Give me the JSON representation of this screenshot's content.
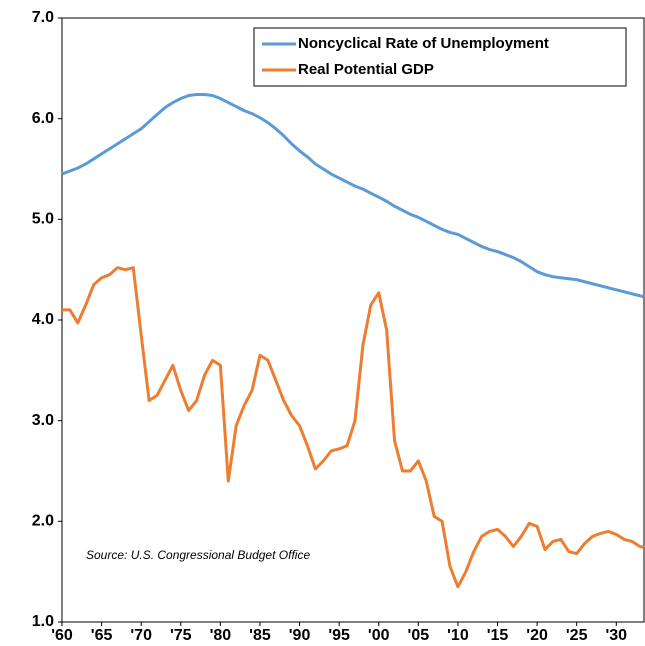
{
  "chart_data": {
    "type": "line",
    "annotation": "Source: U.S. Congressional Budget Office",
    "legend": "top-right",
    "x": [
      1960,
      1961,
      1962,
      1963,
      1964,
      1965,
      1966,
      1967,
      1968,
      1969,
      1970,
      1971,
      1972,
      1973,
      1974,
      1975,
      1976,
      1977,
      1978,
      1979,
      1980,
      1981,
      1982,
      1983,
      1984,
      1985,
      1986,
      1987,
      1988,
      1989,
      1990,
      1991,
      1992,
      1993,
      1994,
      1995,
      1996,
      1997,
      1998,
      1999,
      2000,
      2001,
      2002,
      2003,
      2004,
      2005,
      2006,
      2007,
      2008,
      2009,
      2010,
      2011,
      2012,
      2013,
      2014,
      2015,
      2016,
      2017,
      2018,
      2019,
      2020,
      2021,
      2022,
      2023,
      2024,
      2025,
      2026,
      2027,
      2028,
      2029,
      2030,
      2031,
      2032,
      2033,
      2033.5
    ],
    "series": [
      {
        "name": "Noncyclical Rate of Unemployment",
        "color": "#5b9bd5",
        "values": [
          5.45,
          5.48,
          5.51,
          5.55,
          5.6,
          5.65,
          5.7,
          5.75,
          5.8,
          5.85,
          5.9,
          5.97,
          6.04,
          6.11,
          6.16,
          6.2,
          6.23,
          6.24,
          6.24,
          6.23,
          6.2,
          6.16,
          6.12,
          6.08,
          6.05,
          6.01,
          5.96,
          5.9,
          5.83,
          5.75,
          5.68,
          5.62,
          5.55,
          5.5,
          5.45,
          5.41,
          5.37,
          5.33,
          5.3,
          5.26,
          5.22,
          5.18,
          5.13,
          5.09,
          5.05,
          5.02,
          4.98,
          4.94,
          4.9,
          4.87,
          4.85,
          4.81,
          4.77,
          4.73,
          4.7,
          4.68,
          4.65,
          4.62,
          4.58,
          4.53,
          4.48,
          4.45,
          4.43,
          4.42,
          4.41,
          4.4,
          4.38,
          4.36,
          4.34,
          4.32,
          4.3,
          4.28,
          4.26,
          4.24,
          4.23
        ]
      },
      {
        "name": "Real Potential GDP",
        "color": "#ed7d31",
        "values": [
          4.1,
          4.1,
          3.97,
          4.15,
          4.35,
          4.42,
          4.45,
          4.52,
          4.5,
          4.52,
          3.85,
          3.2,
          3.25,
          3.4,
          3.55,
          3.3,
          3.1,
          3.2,
          3.45,
          3.6,
          3.55,
          2.4,
          2.95,
          3.15,
          3.3,
          3.65,
          3.6,
          3.4,
          3.2,
          3.05,
          2.95,
          2.75,
          2.52,
          2.6,
          2.7,
          2.72,
          2.75,
          3.0,
          3.75,
          4.15,
          4.27,
          3.9,
          2.8,
          2.5,
          2.5,
          2.6,
          2.4,
          2.05,
          2.0,
          1.55,
          1.35,
          1.5,
          1.7,
          1.85,
          1.9,
          1.92,
          1.85,
          1.75,
          1.85,
          1.98,
          1.95,
          1.72,
          1.8,
          1.82,
          1.7,
          1.68,
          1.78,
          1.85,
          1.88,
          1.9,
          1.87,
          1.82,
          1.8,
          1.75,
          1.74
        ]
      }
    ],
    "xlim": [
      1960,
      2033.5
    ],
    "xticks": [
      {
        "value": 1960,
        "label": "'60"
      },
      {
        "value": 1965,
        "label": "'65"
      },
      {
        "value": 1970,
        "label": "'70"
      },
      {
        "value": 1975,
        "label": "'75"
      },
      {
        "value": 1980,
        "label": "'80"
      },
      {
        "value": 1985,
        "label": "'85"
      },
      {
        "value": 1990,
        "label": "'90"
      },
      {
        "value": 1995,
        "label": "'95"
      },
      {
        "value": 2000,
        "label": "'00"
      },
      {
        "value": 2005,
        "label": "'05"
      },
      {
        "value": 2010,
        "label": "'10"
      },
      {
        "value": 2015,
        "label": "'15"
      },
      {
        "value": 2020,
        "label": "'20"
      },
      {
        "value": 2025,
        "label": "'25"
      },
      {
        "value": 2030,
        "label": "'30"
      }
    ],
    "ylim": [
      1,
      7
    ],
    "yticks": [
      {
        "value": 1,
        "label": "1.0"
      },
      {
        "value": 2,
        "label": "2.0"
      },
      {
        "value": 3,
        "label": "3.0"
      },
      {
        "value": 4,
        "label": "4.0"
      },
      {
        "value": 5,
        "label": "5.0"
      },
      {
        "value": 6,
        "label": "6.0"
      },
      {
        "value": 7,
        "label": "7.0"
      }
    ],
    "grid": false
  }
}
